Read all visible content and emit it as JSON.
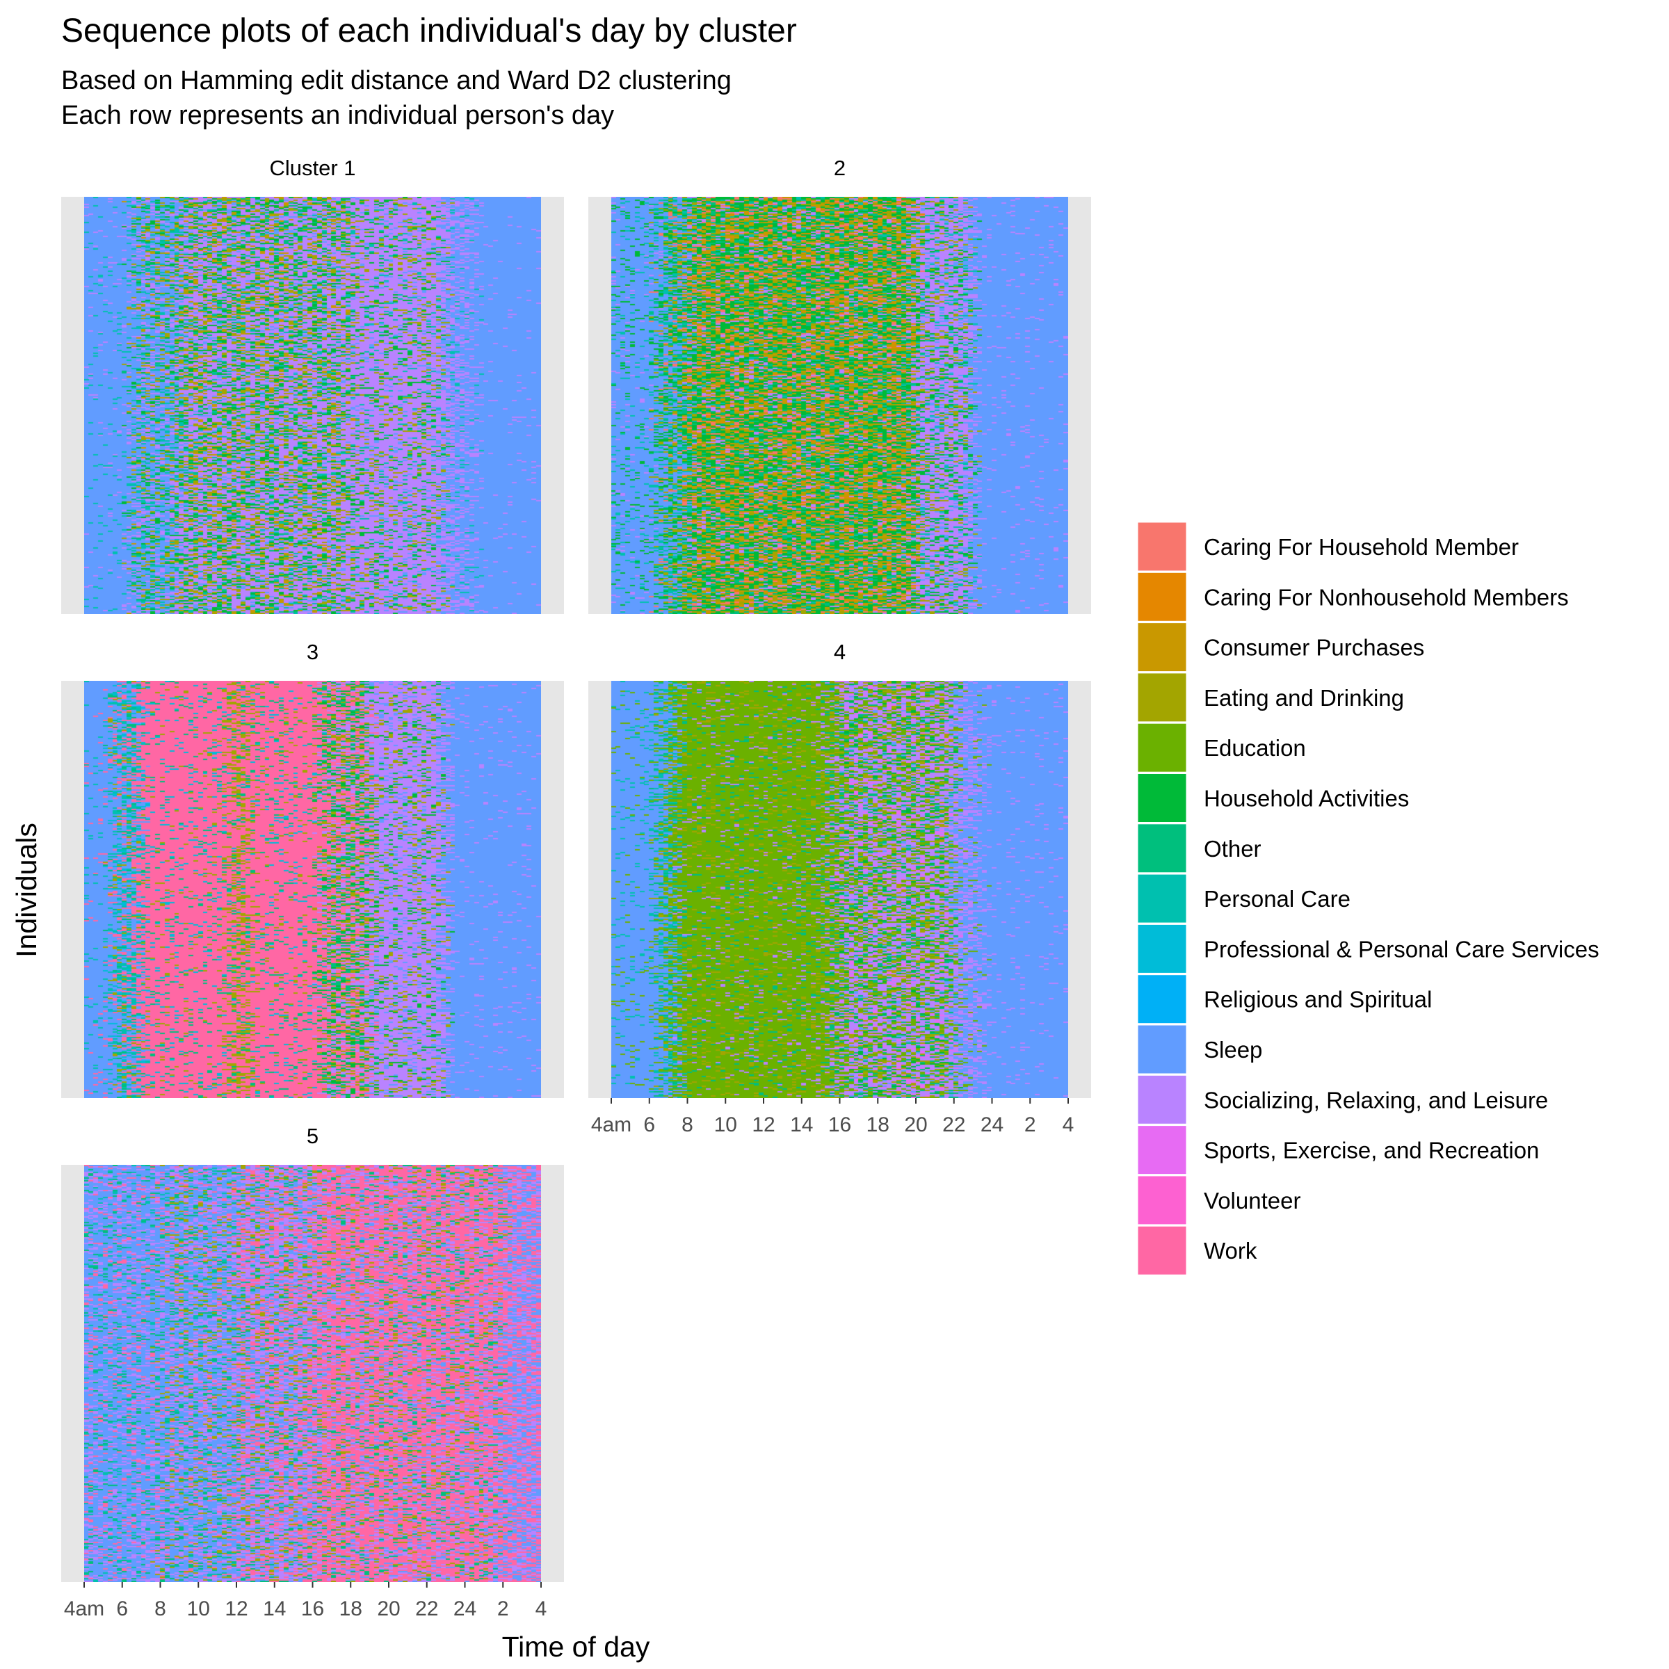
{
  "chart_data": {
    "type": "heatmap",
    "title": "Sequence plots of each individual's day by cluster",
    "subtitle_lines": [
      "Based on Hamming edit distance and Ward D2 clustering",
      "Each row represents an individual person's day"
    ],
    "xlabel": "Time of day",
    "ylabel": "Individuals",
    "x_range_hours": [
      4,
      28
    ],
    "x_ticks": [
      {
        "hour": 4,
        "label": "4am"
      },
      {
        "hour": 6,
        "label": "6"
      },
      {
        "hour": 8,
        "label": "8"
      },
      {
        "hour": 10,
        "label": "10"
      },
      {
        "hour": 12,
        "label": "12"
      },
      {
        "hour": 14,
        "label": "14"
      },
      {
        "hour": 16,
        "label": "16"
      },
      {
        "hour": 18,
        "label": "18"
      },
      {
        "hour": 20,
        "label": "20"
      },
      {
        "hour": 22,
        "label": "22"
      },
      {
        "hour": 24,
        "label": "24"
      },
      {
        "hour": 26,
        "label": "2"
      },
      {
        "hour": 28,
        "label": "4"
      }
    ],
    "legend_position": "right",
    "legend": [
      {
        "label": "Caring For Household Member",
        "color": "#F8766D"
      },
      {
        "label": "Caring For Nonhousehold Members",
        "color": "#E58700"
      },
      {
        "label": "Consumer Purchases",
        "color": "#C99800"
      },
      {
        "label": "Eating and Drinking",
        "color": "#A3A500"
      },
      {
        "label": "Education",
        "color": "#6BB100"
      },
      {
        "label": "Household Activities",
        "color": "#00BA38"
      },
      {
        "label": "Other",
        "color": "#00BF7D"
      },
      {
        "label": "Personal Care",
        "color": "#00C0AF"
      },
      {
        "label": "Professional & Personal Care Services",
        "color": "#00BCD8"
      },
      {
        "label": "Religious and Spiritual",
        "color": "#00B0F6"
      },
      {
        "label": "Sleep",
        "color": "#619CFF"
      },
      {
        "label": "Socializing, Relaxing, and Leisure",
        "color": "#B983FF"
      },
      {
        "label": "Sports, Exercise, and Recreation",
        "color": "#E76BF3"
      },
      {
        "label": "Volunteer",
        "color": "#FD61D1"
      },
      {
        "label": "Work",
        "color": "#FF67A4"
      }
    ],
    "panels": [
      {
        "strip": "Cluster 1",
        "dominant_daytime": "Socializing, Relaxing, and Leisure",
        "show_x_axis": false
      },
      {
        "strip": "2",
        "dominant_daytime": "Household Activities",
        "show_x_axis": false
      },
      {
        "strip": "3",
        "dominant_daytime": "Work",
        "show_x_axis": false
      },
      {
        "strip": "4",
        "dominant_daytime": "Education",
        "show_x_axis": true
      },
      {
        "strip": "5",
        "dominant_daytime": "Work",
        "show_x_axis": true
      }
    ]
  }
}
